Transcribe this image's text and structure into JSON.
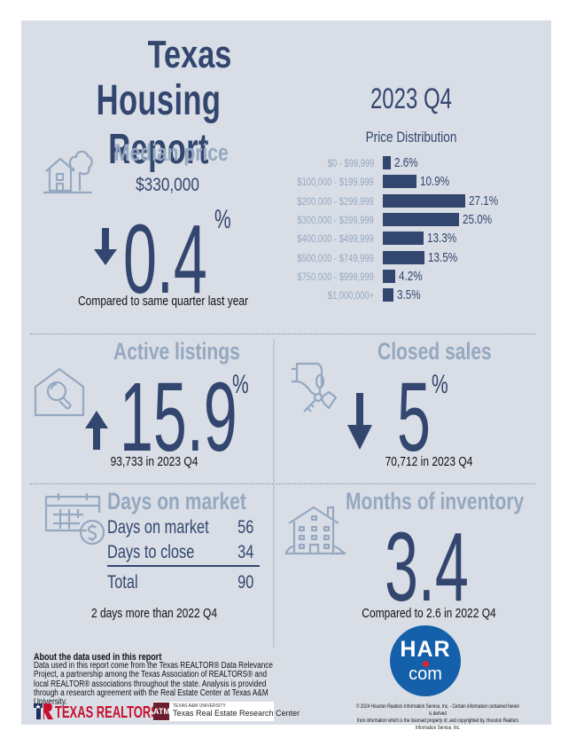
{
  "header": {
    "title_line1": "Texas",
    "title_line2": "Housing Report",
    "period": "2023 Q4"
  },
  "colors": {
    "navy": "#33466f",
    "light_blue": "#95a8c0",
    "background": "#d9dee6",
    "har_blue": "#1460aa",
    "realtors_red": "#c8102e"
  },
  "median_price": {
    "heading": "Median price",
    "icon": "house-tree-icon",
    "price": "$330,000",
    "direction": "down",
    "change_value": "0.4",
    "change_unit": "%",
    "caption": "Compared to same quarter last year"
  },
  "chart_data": {
    "type": "bar",
    "orientation": "horizontal",
    "title": "Price Distribution",
    "categories": [
      "$0 - $99,999",
      "$100,000 - $199,999",
      "$200,000 - $299,999",
      "$300,000 - $399,999",
      "$400,000 - $499,999",
      "$500,000 - $749,999",
      "$750,000 - $999,999",
      "$1,000,000+"
    ],
    "values": [
      2.6,
      10.9,
      27.1,
      25.0,
      13.3,
      13.5,
      4.2,
      3.5
    ],
    "value_labels": [
      "2.6%",
      "10.9%",
      "27.1%",
      "25.0%",
      "13.3%",
      "13.5%",
      "4.2%",
      "3.5%"
    ],
    "xlabel": "",
    "ylabel": "",
    "unit": "%",
    "grid": false
  },
  "active_listings": {
    "heading": "Active listings",
    "icon": "house-search-icon",
    "direction": "up",
    "change_value": "15.9",
    "change_unit": "%",
    "caption": "93,733 in 2023 Q4"
  },
  "closed_sales": {
    "heading": "Closed sales",
    "icon": "hand-keys-icon",
    "direction": "down",
    "change_value": "5",
    "change_unit": "%",
    "caption": "70,712 in 2023 Q4"
  },
  "days_on_market": {
    "heading": "Days on market",
    "icon": "calendar-dollar-icon",
    "rows": [
      {
        "label": "Days on market",
        "value": "56"
      },
      {
        "label": "Days to close",
        "value": "34"
      }
    ],
    "total_label": "Total",
    "total_value": "90",
    "caption": "2 days more than 2022 Q4"
  },
  "months_inventory": {
    "heading": "Months of inventory",
    "icon": "apartment-building-icon",
    "value": "3.4",
    "caption": "Compared to 2.6 in 2022 Q4"
  },
  "footer": {
    "about_title": "About the data used in this report",
    "about_body": "Data used in this report come from the Texas REALTOR® Data Relevance Project, a partnership among the Texas Association of REALTORS® and local REALTOR® associations throughout the state. Analysis is provided through a research agreement with the Real Estate Center at Texas A&M University.",
    "texas_realtors": "TEXAS REALTORS",
    "tamu_small": "TEXAS A&M UNIVERSITY",
    "tamu_name": "Texas Real Estate Research Center",
    "tamu_mark": "ATM",
    "har_top": "HAR",
    "har_bottom": "com",
    "copyright_line1": "© 2024 Houston Realtors Information Service, Inc. - Certain information contained herein is derived",
    "copyright_line2": "from information which is the licensed property of, and copyrighted by, Houston Realtors Information Service, Inc."
  }
}
